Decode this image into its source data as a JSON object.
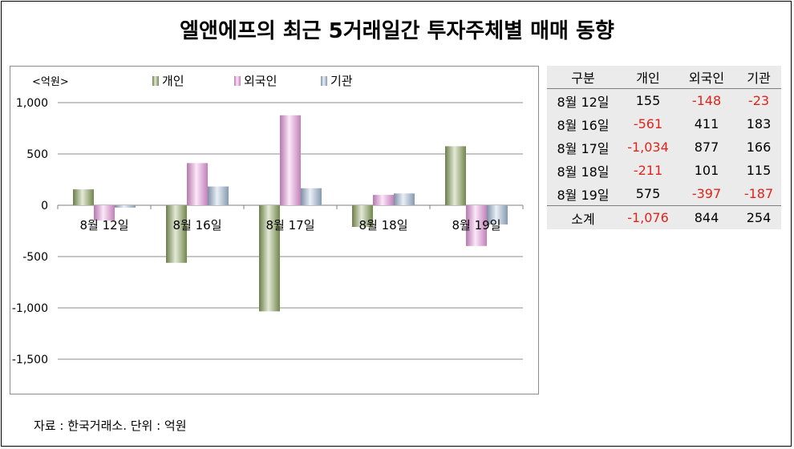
{
  "title": "엘앤에프의 최근 5거래일간 투자주체별 매매 동향",
  "source": "자료 : 한국거래소. 단위 : 억원",
  "chart_data": {
    "type": "bar",
    "unit_label": "<억원>",
    "categories": [
      "8월 12일",
      "8월 16일",
      "8월 17일",
      "8월 18일",
      "8월 19일"
    ],
    "series": [
      {
        "name": "개인",
        "values": [
          155,
          -561,
          -1034,
          -211,
          575
        ],
        "color": "#8fa860"
      },
      {
        "name": "외국인",
        "values": [
          -148,
          411,
          877,
          101,
          -397
        ],
        "color": "#f2a0e6"
      },
      {
        "name": "기관",
        "values": [
          -23,
          183,
          166,
          115,
          -187
        ],
        "color": "#a8c0dc"
      }
    ],
    "ylim": [
      -1500,
      1000
    ],
    "yticks": [
      1000,
      500,
      0,
      -500,
      -1000,
      -1500
    ],
    "ytick_labels": [
      "1,000",
      "500",
      "0",
      "-500",
      "-1,000",
      "-1,500"
    ],
    "legend_position": "top",
    "grid": true
  },
  "table": {
    "headers": [
      "구분",
      "개인",
      "외국인",
      "기관"
    ],
    "rows": [
      [
        "8월 12일",
        "155",
        "-148",
        "-23"
      ],
      [
        "8월 16일",
        "-561",
        "411",
        "183"
      ],
      [
        "8월 17일",
        "-1,034",
        "877",
        "166"
      ],
      [
        "8월 18일",
        "-211",
        "101",
        "115"
      ],
      [
        "8월 19일",
        "575",
        "-397",
        "-187"
      ]
    ],
    "total": [
      "소계",
      "-1,076",
      "844",
      "254"
    ]
  }
}
